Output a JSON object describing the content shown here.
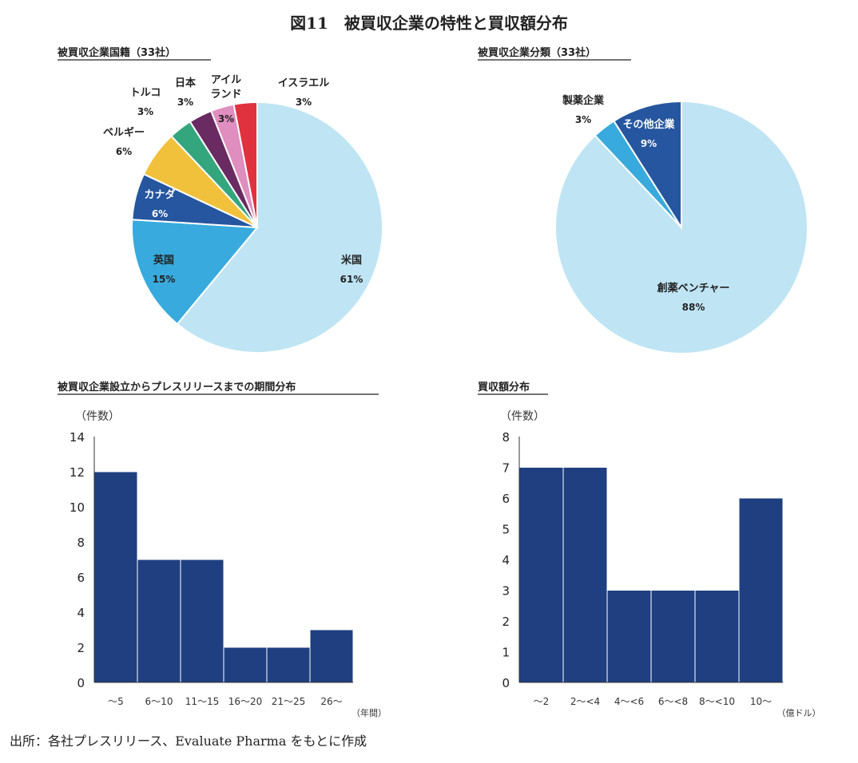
{
  "title": "図11　被買収企業の特性と買収額分布",
  "source": "出所：各社プレスリリース、Evaluate Pharma をもとに作成",
  "chart_data": [
    {
      "type": "pie",
      "title": "被買収企業国籍（33社）",
      "slices": [
        {
          "label": "米国",
          "value": 61,
          "pct": "61%",
          "color": "#bfe4f4"
        },
        {
          "label": "英国",
          "value": 15,
          "pct": "15%",
          "color": "#38aadd"
        },
        {
          "label": "カナダ",
          "value": 6,
          "pct": "6%",
          "color": "#25569f"
        },
        {
          "label": "ベルギー",
          "value": 6,
          "pct": "6%",
          "color": "#f2c13c"
        },
        {
          "label": "トルコ",
          "value": 3,
          "pct": "3%",
          "color": "#34a67e"
        },
        {
          "label": "日本",
          "value": 3,
          "pct": "3%",
          "color": "#6a2a62"
        },
        {
          "label": "アイルランド",
          "value": 3,
          "pct": "3%",
          "color": "#e08dbf"
        },
        {
          "label": "イスラエル",
          "value": 3,
          "pct": "3%",
          "color": "#e0313f"
        }
      ]
    },
    {
      "type": "pie",
      "title": "被買収企業分類（33社）",
      "slices": [
        {
          "label": "創薬ベンチャー",
          "value": 88,
          "pct": "88%",
          "color": "#bfe4f4"
        },
        {
          "label": "製薬企業",
          "value": 3,
          "pct": "3%",
          "color": "#38aadd"
        },
        {
          "label": "その他企業",
          "value": 9,
          "pct": "9%",
          "color": "#25569f"
        }
      ]
    },
    {
      "type": "bar",
      "title": "被買収企業設立からプレスリリースまでの期間分布",
      "ylabel": "（件数）",
      "xlabel": "（年間）",
      "categories": [
        "～5",
        "6～10",
        "11～15",
        "16～20",
        "21～25",
        "26～"
      ],
      "values": [
        12,
        7,
        7,
        2,
        2,
        3
      ],
      "ylim": [
        0,
        14
      ],
      "yticks": [
        0,
        2,
        4,
        6,
        8,
        10,
        12,
        14
      ],
      "color": "#1f3f80"
    },
    {
      "type": "bar",
      "title": "買収額分布",
      "ylabel": "（件数）",
      "xlabel": "（億ドル）",
      "categories": [
        "～2",
        "2～<4",
        "4～<6",
        "6～<8",
        "8～<10",
        "10～"
      ],
      "values": [
        7,
        7,
        3,
        3,
        3,
        6
      ],
      "ylim": [
        0,
        8
      ],
      "yticks": [
        0,
        1,
        2,
        3,
        4,
        5,
        6,
        7,
        8
      ],
      "color": "#1f3f80"
    }
  ]
}
